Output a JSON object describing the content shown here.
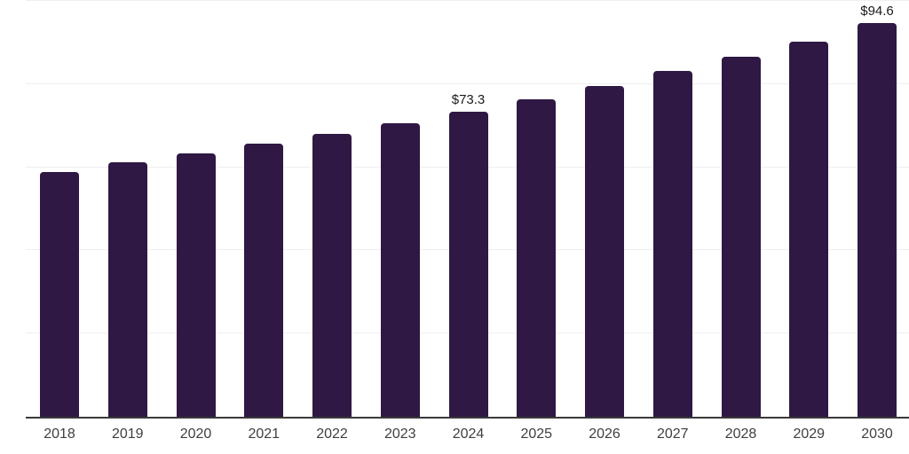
{
  "chart_data": {
    "type": "bar",
    "title": "",
    "xlabel": "",
    "ylabel": "",
    "categories": [
      "2018",
      "2019",
      "2020",
      "2021",
      "2022",
      "2023",
      "2024",
      "2025",
      "2026",
      "2027",
      "2028",
      "2029",
      "2030"
    ],
    "values": [
      58.9,
      61.2,
      63.3,
      65.6,
      68.0,
      70.6,
      73.3,
      76.4,
      79.5,
      83.2,
      86.5,
      90.3,
      94.6
    ],
    "bar_labels": [
      "",
      "",
      "",
      "",
      "",
      "",
      "$73.3",
      "",
      "",
      "",
      "",
      "",
      "$94.6"
    ],
    "ylim": [
      0,
      100
    ],
    "gridline_values": [
      20,
      40,
      60,
      80,
      100
    ],
    "grid": "horizontal",
    "legend": "none",
    "colors": {
      "bar": "#2f1843",
      "axis_line": "#3a3a3a",
      "gridline": "#efeff2",
      "value_label": "#1a1a1a",
      "tick_label": "#3f3f3f",
      "background": "#ffffff"
    }
  }
}
